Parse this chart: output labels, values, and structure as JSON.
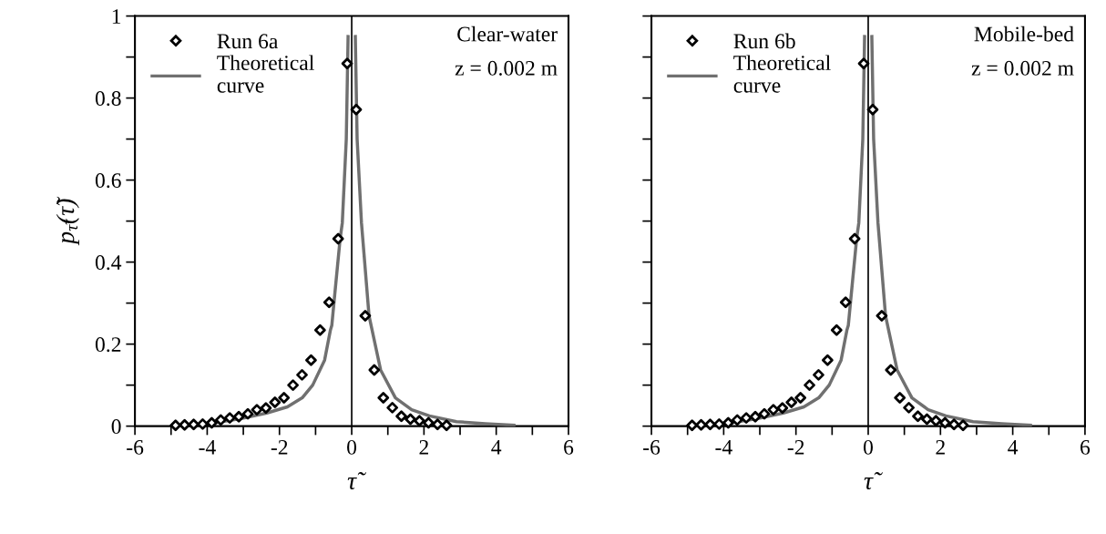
{
  "chart_data": [
    {
      "type": "scatter",
      "xlabel": "τ̃",
      "ylabel": "p$_{τ̃}$(τ̃)",
      "annotations": [
        "Clear-water",
        "z = 0.002 m"
      ],
      "xlim": [
        -6,
        6
      ],
      "ylim": [
        0,
        1
      ],
      "xticks": [
        -6,
        {
          "value": -5,
          "label": null
        },
        -4,
        {
          "value": -3,
          "label": null
        },
        -2,
        {
          "value": -1,
          "label": null
        },
        0,
        {
          "value": 1,
          "label": null
        },
        2,
        {
          "value": 3,
          "label": null
        },
        4,
        {
          "value": 5,
          "label": null
        },
        6
      ],
      "yticks": [
        0,
        {
          "value": 0.1,
          "label": null
        },
        0.2,
        {
          "value": 0.3,
          "label": null
        },
        0.4,
        {
          "value": 0.5,
          "label": null
        },
        0.6,
        {
          "value": 0.7,
          "label": null
        },
        0.8,
        {
          "value": 0.9,
          "label": null
        },
        1
      ],
      "legend": "top left",
      "grid": false,
      "ref_lines": [
        {
          "axis": "x",
          "value": 0,
          "color": "#000000"
        }
      ],
      "series": [
        {
          "name": "Run 6a",
          "marker": "diamond",
          "color": "#000000",
          "x": [
            -4.875,
            -4.625,
            -4.375,
            -4.125,
            -3.875,
            -3.625,
            -3.375,
            -3.125,
            -2.875,
            -2.625,
            -2.375,
            -2.125,
            -1.875,
            -1.625,
            -1.375,
            -1.125,
            -0.875,
            -0.625,
            -0.375,
            -0.125,
            0.125,
            0.375,
            0.625,
            0.875,
            1.125,
            1.375,
            1.625,
            1.875,
            2.125,
            2.375,
            2.625
          ],
          "values": [
            0.002,
            0.003,
            0.004,
            0.005,
            0.008,
            0.015,
            0.02,
            0.023,
            0.03,
            0.04,
            0.044,
            0.058,
            0.069,
            0.1,
            0.125,
            0.161,
            0.234,
            0.302,
            0.457,
            0.884,
            0.772,
            0.269,
            0.137,
            0.069,
            0.045,
            0.024,
            0.017,
            0.013,
            0.008,
            0.004,
            0.002
          ]
        },
        {
          "name": "Theoretical\ncurve",
          "type": "line",
          "color": "#707070",
          "x": [
            -4.3,
            -3.74,
            -3.09,
            -2.35,
            -1.78,
            -1.37,
            -1.08,
            -0.75,
            -0.59,
            -0.55,
            -0.49,
            -0.32,
            -0.26,
            -0.15,
            -0.1,
            null,
            0.1,
            0.15,
            0.27,
            0.48,
            0.8,
            1.21,
            1.66,
            2.15,
            2.9,
            3.7,
            4.49
          ],
          "values": [
            0.004,
            0.009,
            0.018,
            0.032,
            0.047,
            0.069,
            0.1,
            0.161,
            0.234,
            0.246,
            0.302,
            0.457,
            0.496,
            0.7,
            0.95,
            null,
            0.95,
            0.7,
            0.496,
            0.269,
            0.137,
            0.069,
            0.04,
            0.025,
            0.011,
            0.006,
            0.002
          ]
        }
      ]
    },
    {
      "type": "scatter",
      "xlabel": "τ̃",
      "annotations": [
        "Mobile-bed",
        "z = 0.002 m"
      ],
      "xlim": [
        -6,
        6
      ],
      "ylim": [
        0,
        1
      ],
      "tick_labels": "x",
      "xticks": [
        -6,
        {
          "value": -5,
          "label": null
        },
        -4,
        {
          "value": -3,
          "label": null
        },
        -2,
        {
          "value": -1,
          "label": null
        },
        0,
        {
          "value": 1,
          "label": null
        },
        2,
        {
          "value": 3,
          "label": null
        },
        4,
        {
          "value": 5,
          "label": null
        },
        6
      ],
      "yticks": [
        0,
        {
          "value": 0.1,
          "label": null
        },
        0.2,
        {
          "value": 0.3,
          "label": null
        },
        0.4,
        {
          "value": 0.5,
          "label": null
        },
        0.6,
        {
          "value": 0.7,
          "label": null
        },
        0.8,
        {
          "value": 0.9,
          "label": null
        },
        1
      ],
      "legend": "top left",
      "grid": false,
      "ref_lines": [
        {
          "axis": "x",
          "value": 0,
          "color": "#000000"
        }
      ],
      "series": [
        {
          "name": "Run 6b",
          "marker": "diamond",
          "color": "#000000",
          "x": [
            -4.875,
            -4.625,
            -4.375,
            -4.125,
            -3.875,
            -3.625,
            -3.375,
            -3.125,
            -2.875,
            -2.625,
            -2.375,
            -2.125,
            -1.875,
            -1.625,
            -1.375,
            -1.125,
            -0.875,
            -0.625,
            -0.375,
            -0.125,
            0.125,
            0.375,
            0.625,
            0.875,
            1.125,
            1.375,
            1.625,
            1.875,
            2.125,
            2.375,
            2.625
          ],
          "values": [
            0.002,
            0.003,
            0.004,
            0.005,
            0.008,
            0.015,
            0.02,
            0.023,
            0.03,
            0.04,
            0.044,
            0.058,
            0.069,
            0.1,
            0.125,
            0.161,
            0.234,
            0.302,
            0.457,
            0.884,
            0.772,
            0.269,
            0.137,
            0.069,
            0.045,
            0.024,
            0.017,
            0.013,
            0.008,
            0.004,
            0.002
          ]
        },
        {
          "name": "Theoretical\ncurve",
          "type": "line",
          "color": "#707070",
          "x": [
            -4.3,
            -3.74,
            -3.09,
            -2.35,
            -1.78,
            -1.37,
            -1.08,
            -0.75,
            -0.59,
            -0.55,
            -0.49,
            -0.32,
            -0.26,
            -0.15,
            -0.1,
            null,
            0.1,
            0.15,
            0.27,
            0.48,
            0.8,
            1.21,
            1.66,
            2.15,
            2.9,
            3.7,
            4.49
          ],
          "values": [
            0.004,
            0.009,
            0.018,
            0.032,
            0.047,
            0.069,
            0.1,
            0.161,
            0.234,
            0.246,
            0.302,
            0.457,
            0.496,
            0.7,
            0.95,
            null,
            0.95,
            0.7,
            0.496,
            0.269,
            0.137,
            0.069,
            0.04,
            0.025,
            0.011,
            0.006,
            0.002
          ]
        }
      ]
    }
  ]
}
